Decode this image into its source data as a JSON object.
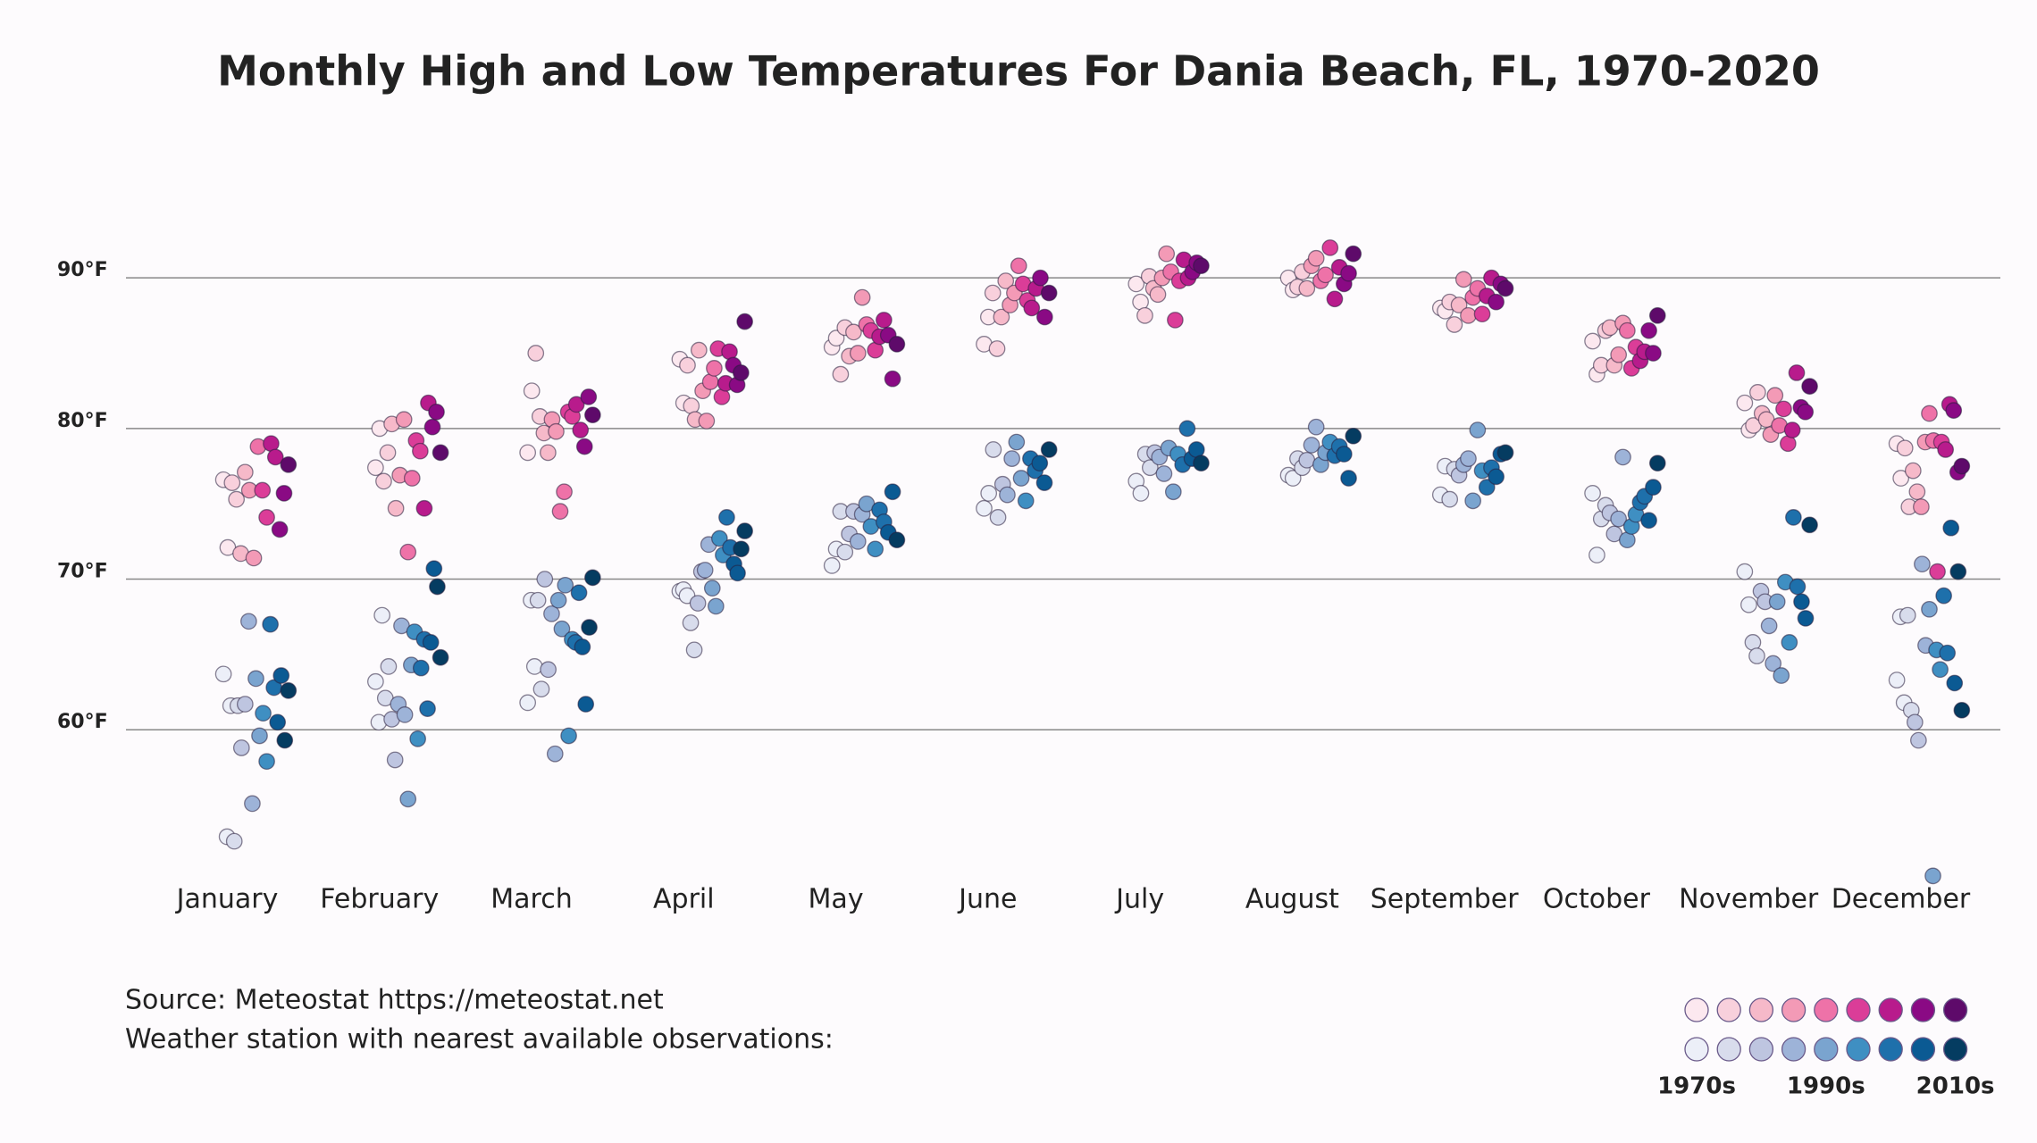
{
  "chart_data": {
    "type": "strip",
    "title": "Monthly High and Low Temperatures For Dania Beach, FL, 1970-2020",
    "categories": [
      "January",
      "February",
      "March",
      "April",
      "May",
      "June",
      "July",
      "August",
      "September",
      "October",
      "November",
      "December"
    ],
    "highs": [
      [
        76.6,
        72.1,
        76.4,
        75.3,
        71.7,
        77.1,
        75.9,
        71.4,
        78.8,
        75.9,
        74.1,
        79.0,
        78.1,
        73.3,
        75.7,
        77.6
      ],
      [
        77.4,
        80.0,
        76.5,
        78.4,
        80.3,
        74.7,
        76.9,
        80.6,
        71.8,
        76.7,
        79.2,
        78.5,
        74.7,
        81.7,
        80.1,
        81.1,
        78.4
      ],
      [
        78.4,
        82.5,
        85.0,
        80.8,
        79.7,
        78.4,
        80.6,
        79.8,
        74.5,
        75.8,
        81.1,
        80.8,
        81.6,
        79.9,
        78.8,
        82.1,
        80.9
      ],
      [
        84.6,
        81.7,
        84.2,
        81.5,
        80.6,
        85.2,
        82.5,
        80.5,
        83.1,
        84.0,
        85.3,
        82.1,
        83.0,
        85.1,
        84.2,
        82.9,
        83.7,
        87.1
      ],
      [
        85.4,
        86.0,
        83.6,
        86.7,
        84.8,
        86.4,
        85.0,
        88.7,
        86.9,
        86.5,
        85.2,
        86.1,
        87.2,
        86.2,
        83.3,
        85.6
      ],
      [
        85.6,
        87.4,
        89.0,
        85.3,
        87.4,
        89.8,
        88.2,
        89.0,
        90.8,
        89.6,
        88.5,
        88.0,
        89.3,
        90.0,
        87.4,
        89.0
      ],
      [
        89.6,
        88.4,
        87.5,
        90.1,
        89.3,
        88.9,
        90.0,
        91.6,
        90.4,
        87.2,
        89.8,
        91.2,
        90.0,
        90.4,
        91.0,
        90.8
      ],
      [
        90.0,
        89.2,
        89.4,
        90.4,
        89.3,
        90.8,
        91.3,
        89.8,
        90.2,
        92.0,
        88.6,
        90.7,
        89.6,
        90.3,
        91.6
      ],
      [
        88.0,
        87.8,
        88.4,
        86.9,
        88.2,
        89.9,
        87.5,
        88.7,
        89.3,
        87.6,
        88.8,
        90.0,
        88.4,
        89.6,
        89.3
      ],
      [
        85.8,
        83.6,
        84.2,
        86.5,
        86.7,
        84.2,
        84.9,
        87.0,
        86.5,
        84.0,
        85.4,
        84.5,
        85.1,
        86.5,
        85.0,
        87.5
      ],
      [
        81.7,
        79.9,
        80.2,
        82.4,
        81.0,
        80.6,
        79.6,
        82.2,
        80.2,
        81.3,
        79.0,
        79.9,
        83.7,
        81.4,
        81.1,
        82.8
      ],
      [
        79.0,
        76.7,
        78.7,
        74.8,
        77.2,
        75.8,
        74.8,
        79.1,
        81.0,
        79.2,
        70.5,
        79.1,
        78.6,
        81.6,
        81.2,
        77.1,
        77.5
      ]
    ],
    "lows": [
      [
        63.7,
        52.9,
        61.6,
        52.6,
        61.6,
        58.8,
        61.7,
        67.2,
        55.1,
        63.4,
        59.6,
        61.1,
        57.9,
        67.0,
        62.8,
        60.5,
        63.6,
        59.3,
        62.6
      ],
      [
        63.2,
        60.5,
        67.6,
        62.1,
        64.2,
        60.7,
        58.0,
        61.7,
        66.9,
        61.0,
        55.4,
        64.3,
        66.5,
        59.4,
        64.1,
        66.0,
        61.4,
        65.8,
        70.7,
        69.5,
        64.8
      ],
      [
        61.8,
        68.6,
        64.2,
        68.6,
        62.7,
        70.0,
        64.0,
        67.7,
        58.4,
        68.6,
        66.7,
        69.6,
        59.6,
        66.0,
        65.8,
        69.1,
        65.5,
        61.7,
        66.8,
        70.1
      ],
      [
        69.2,
        69.3,
        68.9,
        67.1,
        65.3,
        68.4,
        70.5,
        70.6,
        72.3,
        69.4,
        68.2,
        72.7,
        71.6,
        74.1,
        72.1,
        71.0,
        70.4,
        72.0,
        73.2
      ],
      [
        70.9,
        72.0,
        74.5,
        71.8,
        73.0,
        74.5,
        72.5,
        74.3,
        75.0,
        73.5,
        72.0,
        74.6,
        73.8,
        73.1,
        75.8,
        72.6
      ],
      [
        74.7,
        75.7,
        78.6,
        74.1,
        76.3,
        75.6,
        78.0,
        79.1,
        76.7,
        75.2,
        78.0,
        77.2,
        77.7,
        76.4,
        78.6
      ],
      [
        76.5,
        75.7,
        78.3,
        77.4,
        78.4,
        78.1,
        77.0,
        78.7,
        75.8,
        78.3,
        77.6,
        80.0,
        78.0,
        78.6,
        77.7
      ],
      [
        76.9,
        76.7,
        78.0,
        77.4,
        77.9,
        78.9,
        80.1,
        77.6,
        78.4,
        79.1,
        78.2,
        78.8,
        78.3,
        76.7,
        79.5
      ],
      [
        75.6,
        77.5,
        75.3,
        77.3,
        76.9,
        77.6,
        78.0,
        75.2,
        79.9,
        77.2,
        76.1,
        77.4,
        76.8,
        78.3,
        78.4
      ],
      [
        75.7,
        71.6,
        74.0,
        74.9,
        74.4,
        73.0,
        74.0,
        78.1,
        72.6,
        73.5,
        74.3,
        75.1,
        75.5,
        73.9,
        76.1,
        77.7
      ],
      [
        70.5,
        68.3,
        65.8,
        64.9,
        69.2,
        68.5,
        66.9,
        64.4,
        68.5,
        63.6,
        69.8,
        65.8,
        74.1,
        69.5,
        68.5,
        67.4,
        73.6
      ],
      [
        63.3,
        67.5,
        61.8,
        67.6,
        61.3,
        60.5,
        59.3,
        71.0,
        65.6,
        68.0,
        50.3,
        65.3,
        64.0,
        68.9,
        65.1,
        73.4,
        63.1,
        70.5,
        61.3
      ]
    ],
    "high_colors": [
      "#fce8ef",
      "#f8d0dc",
      "#f6b9c9",
      "#f39ab6",
      "#ee72a8",
      "#db3d98",
      "#b81b8c",
      "#8a0a84",
      "#5e0a6a"
    ],
    "low_colors": [
      "#eceff8",
      "#d8dcec",
      "#bec5e0",
      "#9db3d8",
      "#7aa4cf",
      "#3f8fc2",
      "#1e70ab",
      "#0b5a93",
      "#053c61"
    ],
    "legend_labels": [
      "1970s",
      "1990s",
      "2010s"
    ],
    "ylim": [
      49,
      97
    ],
    "yticks": [
      {
        "value": 60,
        "label": "60°F"
      },
      {
        "value": 70,
        "label": "70°F"
      },
      {
        "value": 80,
        "label": "80°F"
      },
      {
        "value": 90,
        "label": "90°F"
      }
    ],
    "grid": true,
    "source": "Source: Meteostat https://meteostat.net",
    "note": "Weather station with nearest available observations:"
  }
}
